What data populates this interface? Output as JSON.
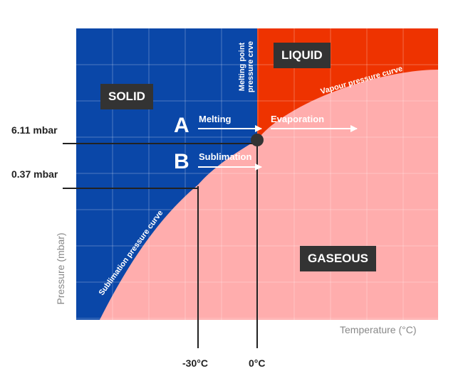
{
  "regions": {
    "solid": "SOLID",
    "liquid": "LIQUID",
    "gaseous": "GASEOUS"
  },
  "points": {
    "a": {
      "letter": "A",
      "left_arrow": "Melting",
      "right_arrow": "Evaporation"
    },
    "b": {
      "letter": "B",
      "arrow": "Sublimation"
    }
  },
  "curves": {
    "melting_line1": "Melting point",
    "melting_line2": "pressure crve",
    "vapour": "Vapour pressure curve",
    "sublimation": "Sublimation pressure curve"
  },
  "pressure_labels": {
    "high": "6.11 mbar",
    "low": "0.37 mbar"
  },
  "temperature_labels": {
    "left": "-30°C",
    "right": "0°C"
  },
  "axes": {
    "x_title": "Temperature (°C)",
    "y_title": "Pressure (mbar)"
  },
  "colors": {
    "solid": "#0a47a8",
    "liquid": "#ee3300",
    "gaseous": "#ffadad",
    "label_box": "#333333",
    "triple_point": "#333333"
  }
}
